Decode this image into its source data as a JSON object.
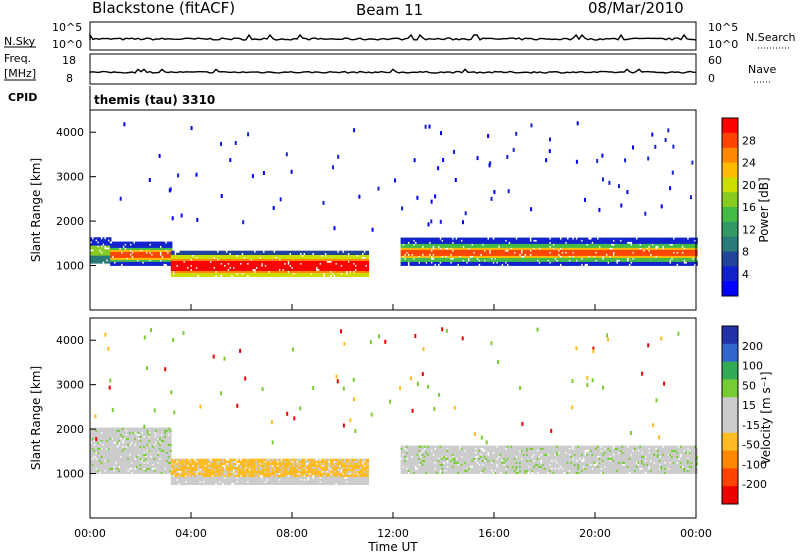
{
  "header": {
    "station": "Blackstone (fitACF)",
    "beam": "Beam 11",
    "date": "08/Mar/2010"
  },
  "top_panel": {
    "left_label": "N.Sky",
    "left_ticks": [
      "10^5",
      "10^0"
    ],
    "right_ticks": [
      "10^5",
      "10^0"
    ],
    "right_label": "N.Search"
  },
  "freq_panel": {
    "left_label_1": "Freq.",
    "left_label_2": "[MHz]",
    "left_ticks": [
      "18",
      "8"
    ],
    "right_ticks": [
      "60",
      "0"
    ],
    "right_label": "Nave"
  },
  "cpid": {
    "label": "CPID",
    "text": "themis (tau) 3310"
  },
  "chart_data": [
    {
      "type": "heatmap",
      "name": "power",
      "ylabel": "Slant Range [km]",
      "y_ticks": [
        "4000",
        "3000",
        "2000",
        "1000"
      ],
      "ylim": [
        0,
        4500
      ],
      "x_range_hours": [
        0,
        24
      ],
      "colorbar_label": "Power [dB]",
      "colorbar_ticks": [
        "28",
        "24",
        "20",
        "16",
        "12",
        "8",
        "4"
      ],
      "colorbar_colors": [
        "#ff0000",
        "#ff4400",
        "#ff8800",
        "#ffbb00",
        "#ccdd00",
        "#88cc22",
        "#44bb44",
        "#339966",
        "#2a7a7a",
        "#224499",
        "#1122cc",
        "#0000ff"
      ],
      "bands": [
        {
          "t0": 0.0,
          "t1": 0.8,
          "r0": 1050,
          "r1": 1600,
          "level": "medium"
        },
        {
          "t0": 0.8,
          "t1": 3.2,
          "r0": 1000,
          "r1": 1500,
          "level": "medium-high"
        },
        {
          "t0": 3.2,
          "t1": 11.0,
          "r0": 750,
          "r1": 1300,
          "level": "high"
        },
        {
          "t0": 12.3,
          "t1": 24.0,
          "r0": 1000,
          "r1": 1600,
          "level": "medium-high"
        }
      ]
    },
    {
      "type": "heatmap",
      "name": "velocity",
      "ylabel": "Slant Range [km]",
      "y_ticks": [
        "4000",
        "3000",
        "2000",
        "1000"
      ],
      "ylim": [
        0,
        4500
      ],
      "x_range_hours": [
        0,
        24
      ],
      "colorbar_label": "Velocity [m s⁻¹]",
      "colorbar_ticks": [
        "200",
        "100",
        "50",
        "15",
        "-15",
        "-50",
        "-100",
        "-200"
      ],
      "colorbar_colors": [
        "#2233aa",
        "#3366cc",
        "#33aa55",
        "#77cc33",
        "#cccccc",
        "#cccccc",
        "#ffbb22",
        "#ff8800",
        "#ff4400",
        "#ee0000"
      ],
      "bands": [
        {
          "t0": 0.0,
          "t1": 3.2,
          "r0": 1000,
          "r1": 2000,
          "level": "ground"
        },
        {
          "t0": 3.2,
          "t1": 11.0,
          "r0": 750,
          "r1": 1300,
          "level": "negative"
        },
        {
          "t0": 12.3,
          "t1": 24.0,
          "r0": 1000,
          "r1": 1600,
          "level": "ground"
        }
      ]
    }
  ],
  "x_axis": {
    "ticks": [
      "00:00",
      "04:00",
      "08:00",
      "12:00",
      "16:00",
      "20:00",
      "00:00"
    ],
    "label": "Time UT"
  }
}
